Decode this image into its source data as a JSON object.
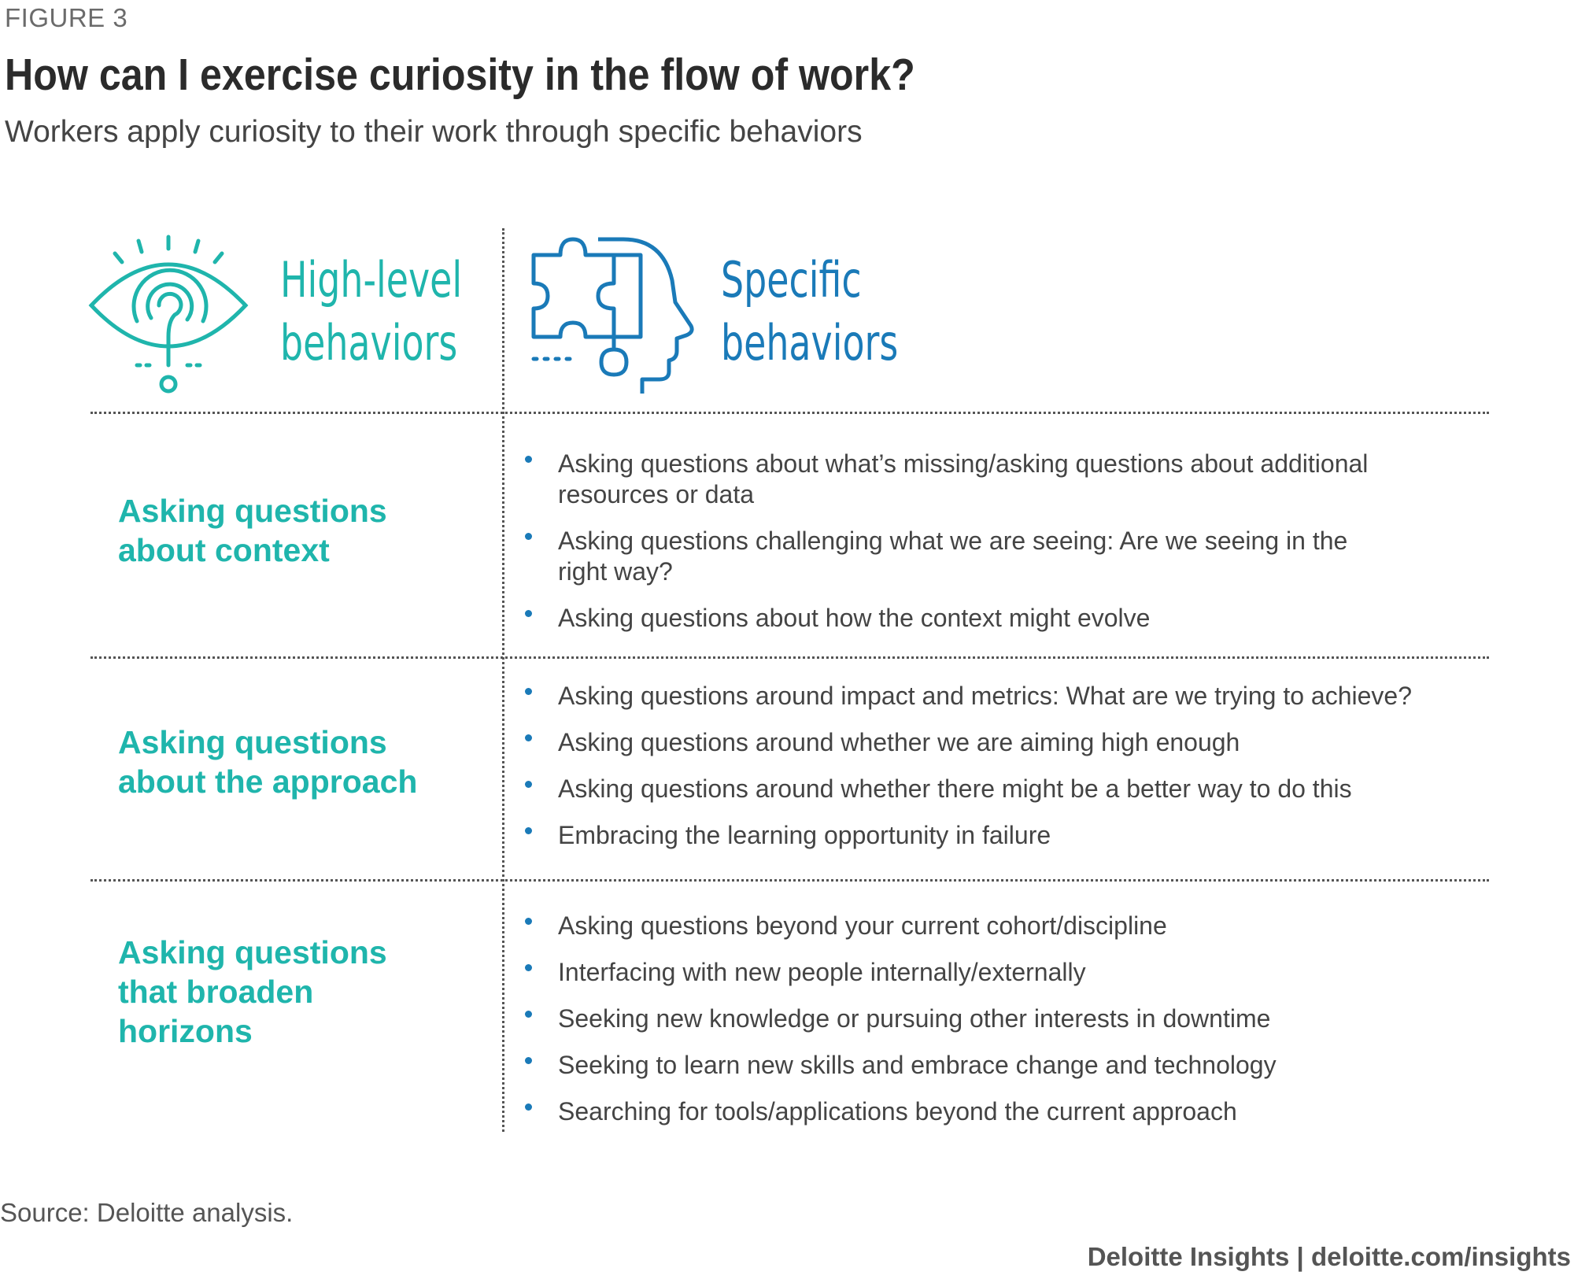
{
  "figure_label": "FIGURE 3",
  "title": "How can I exercise curiosity in the flow of work?",
  "subtitle": "Workers apply curiosity to their work through specific behaviors",
  "headers": {
    "high_level": [
      "High-level",
      "behaviors"
    ],
    "specific": [
      "Specific",
      "behaviors"
    ],
    "high_level_icon": "eye-question-icon",
    "specific_icon": "puzzle-head-icon"
  },
  "rows": [
    {
      "title": [
        "Asking questions",
        "about context"
      ],
      "bullets": [
        [
          "Asking questions about what’s missing/asking questions about additional",
          "resources or data"
        ],
        [
          "Asking questions challenging what we are seeing: Are we seeing in the",
          "right way?"
        ],
        [
          "Asking questions about how the context might evolve"
        ]
      ]
    },
    {
      "title": [
        "Asking questions",
        "about the approach"
      ],
      "bullets": [
        [
          "Asking questions around impact and metrics: What are we trying to achieve?"
        ],
        [
          "Asking questions around whether we are aiming high enough"
        ],
        [
          "Asking questions around whether there might be a better way to do this"
        ],
        [
          "Embracing the learning opportunity in failure"
        ]
      ]
    },
    {
      "title": [
        "Asking questions",
        "that broaden",
        "horizons"
      ],
      "bullets": [
        [
          "Asking questions beyond your current cohort/discipline"
        ],
        [
          "Interfacing with new people internally/externally"
        ],
        [
          "Seeking new knowledge or pursuing other interests in downtime"
        ],
        [
          "Seeking to learn new skills and embrace change and technology"
        ],
        [
          "Searching for tools/applications beyond the current approach"
        ]
      ]
    }
  ],
  "source": "Source: Deloitte analysis.",
  "footer": "Deloitte Insights | deloitte.com/insights",
  "colors": {
    "teal": "#1fb5ac",
    "blue": "#1a7ab8",
    "text": "#444444"
  }
}
